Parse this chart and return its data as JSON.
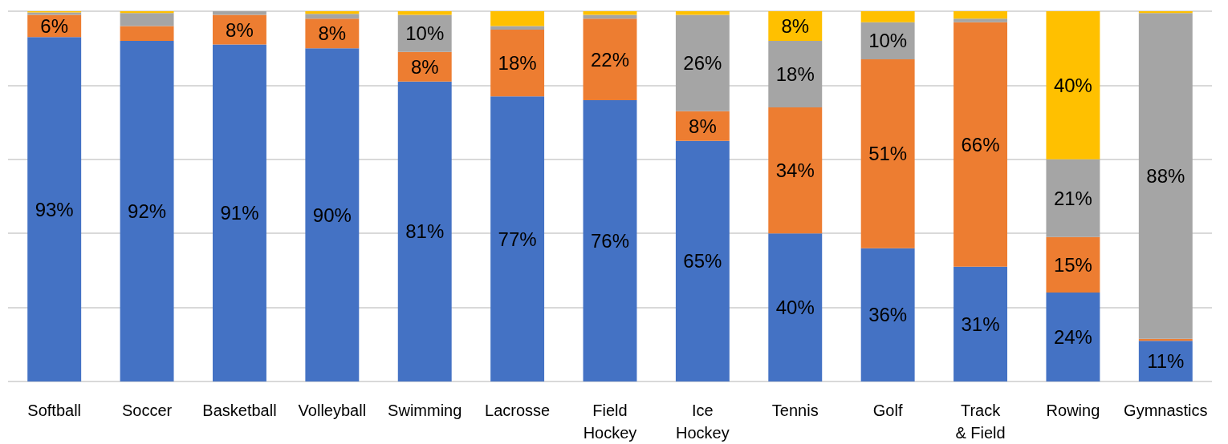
{
  "chart_data": {
    "type": "bar",
    "stacked": true,
    "categories": [
      "Softball",
      "Soccer",
      "Basketball",
      "Volleyball",
      "Swimming",
      "Lacrosse",
      "Field\nHockey",
      "Ice\nHockey",
      "Tennis",
      "Golf",
      "Track\n& Field",
      "Rowing",
      "Gymnastics"
    ],
    "series": [
      {
        "color": "#4472c4",
        "values": [
          93,
          92,
          91,
          90,
          81,
          77,
          76,
          65,
          40,
          36,
          31,
          24,
          11
        ],
        "value_labels": [
          "93%",
          "92%",
          "91%",
          "90%",
          "81%",
          "77%",
          "76%",
          "65%",
          "40%",
          "36%",
          "31%",
          "24%",
          "11%"
        ]
      },
      {
        "color": "#ed7d31",
        "values": [
          6,
          4,
          8,
          8,
          8,
          18,
          22,
          8,
          34,
          51,
          66,
          15,
          0.5
        ],
        "value_labels": [
          "6%",
          null,
          "8%",
          "8%",
          "8%",
          "18%",
          "22%",
          "8%",
          "34%",
          "51%",
          "66%",
          "15%",
          null
        ]
      },
      {
        "color": "#a5a5a5",
        "values": [
          0.7,
          3.5,
          1,
          1.3,
          10,
          1,
          1,
          26,
          18,
          10,
          1,
          21,
          88
        ],
        "value_labels": [
          null,
          null,
          null,
          null,
          "10%",
          null,
          null,
          "26%",
          "18%",
          "10%",
          null,
          "21%",
          "88%"
        ]
      },
      {
        "color": "#ffc000",
        "values": [
          0.3,
          0.5,
          0,
          0.7,
          1,
          4,
          1,
          1,
          8,
          3,
          2,
          40,
          0.5
        ],
        "value_labels": [
          null,
          null,
          null,
          null,
          null,
          null,
          null,
          null,
          "8%",
          null,
          null,
          "40%",
          null
        ]
      }
    ],
    "ylim": [
      0,
      100
    ],
    "yticks": [
      {
        "value": 0,
        "label": null
      },
      {
        "value": 20,
        "label": null
      },
      {
        "value": 40,
        "label": null
      },
      {
        "value": 60,
        "label": null
      },
      {
        "value": 80,
        "label": null
      },
      {
        "value": 100,
        "label": null
      }
    ],
    "grid": "y",
    "tick_labels": "x"
  }
}
